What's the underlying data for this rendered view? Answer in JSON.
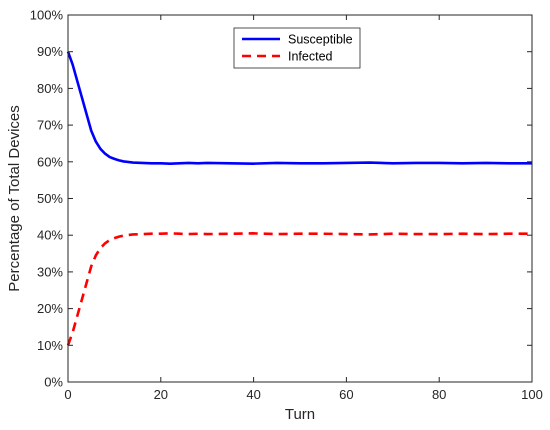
{
  "chart_data": {
    "type": "line",
    "title": "",
    "xlabel": "Turn",
    "ylabel": "Percentage of Total Devices",
    "xlim": [
      0,
      100
    ],
    "ylim": [
      0,
      100
    ],
    "x_ticks": [
      0,
      20,
      40,
      60,
      80,
      100
    ],
    "x_tick_labels": [
      "0",
      "20",
      "40",
      "60",
      "80",
      "100"
    ],
    "y_ticks": [
      0,
      10,
      20,
      30,
      40,
      50,
      60,
      70,
      80,
      90,
      100
    ],
    "y_tick_labels": [
      "0%",
      "10%",
      "20%",
      "30%",
      "40%",
      "50%",
      "60%",
      "70%",
      "80%",
      "90%",
      "100%"
    ],
    "grid": false,
    "legend_position": "top-center",
    "series": [
      {
        "name": "Susceptible",
        "color": "#0000ff",
        "line_style": "solid",
        "x": [
          0,
          1,
          2,
          3,
          4,
          5,
          6,
          7,
          8,
          9,
          10,
          11,
          12,
          14,
          16,
          18,
          20,
          22,
          24,
          26,
          28,
          30,
          35,
          40,
          45,
          50,
          55,
          60,
          65,
          70,
          75,
          80,
          85,
          90,
          95,
          100
        ],
        "y": [
          90,
          86.5,
          82,
          77.5,
          73,
          68.5,
          65.5,
          63.5,
          62.2,
          61.3,
          60.8,
          60.4,
          60.1,
          59.8,
          59.7,
          59.6,
          59.6,
          59.5,
          59.6,
          59.7,
          59.6,
          59.7,
          59.6,
          59.5,
          59.7,
          59.6,
          59.6,
          59.7,
          59.8,
          59.6,
          59.7,
          59.7,
          59.6,
          59.7,
          59.6,
          59.6
        ]
      },
      {
        "name": "Infected",
        "color": "#ff0000",
        "line_style": "dashed",
        "x": [
          0,
          1,
          2,
          3,
          4,
          5,
          6,
          7,
          8,
          9,
          10,
          11,
          12,
          14,
          16,
          18,
          20,
          22,
          24,
          26,
          28,
          30,
          35,
          40,
          45,
          50,
          55,
          60,
          65,
          70,
          75,
          80,
          85,
          90,
          95,
          100
        ],
        "y": [
          10,
          13.5,
          18,
          22.5,
          27,
          31.5,
          34.5,
          36.5,
          37.8,
          38.7,
          39.2,
          39.6,
          39.9,
          40.2,
          40.3,
          40.4,
          40.4,
          40.5,
          40.4,
          40.3,
          40.4,
          40.3,
          40.4,
          40.5,
          40.3,
          40.4,
          40.4,
          40.3,
          40.2,
          40.4,
          40.3,
          40.3,
          40.4,
          40.3,
          40.4,
          40.4
        ]
      }
    ]
  }
}
